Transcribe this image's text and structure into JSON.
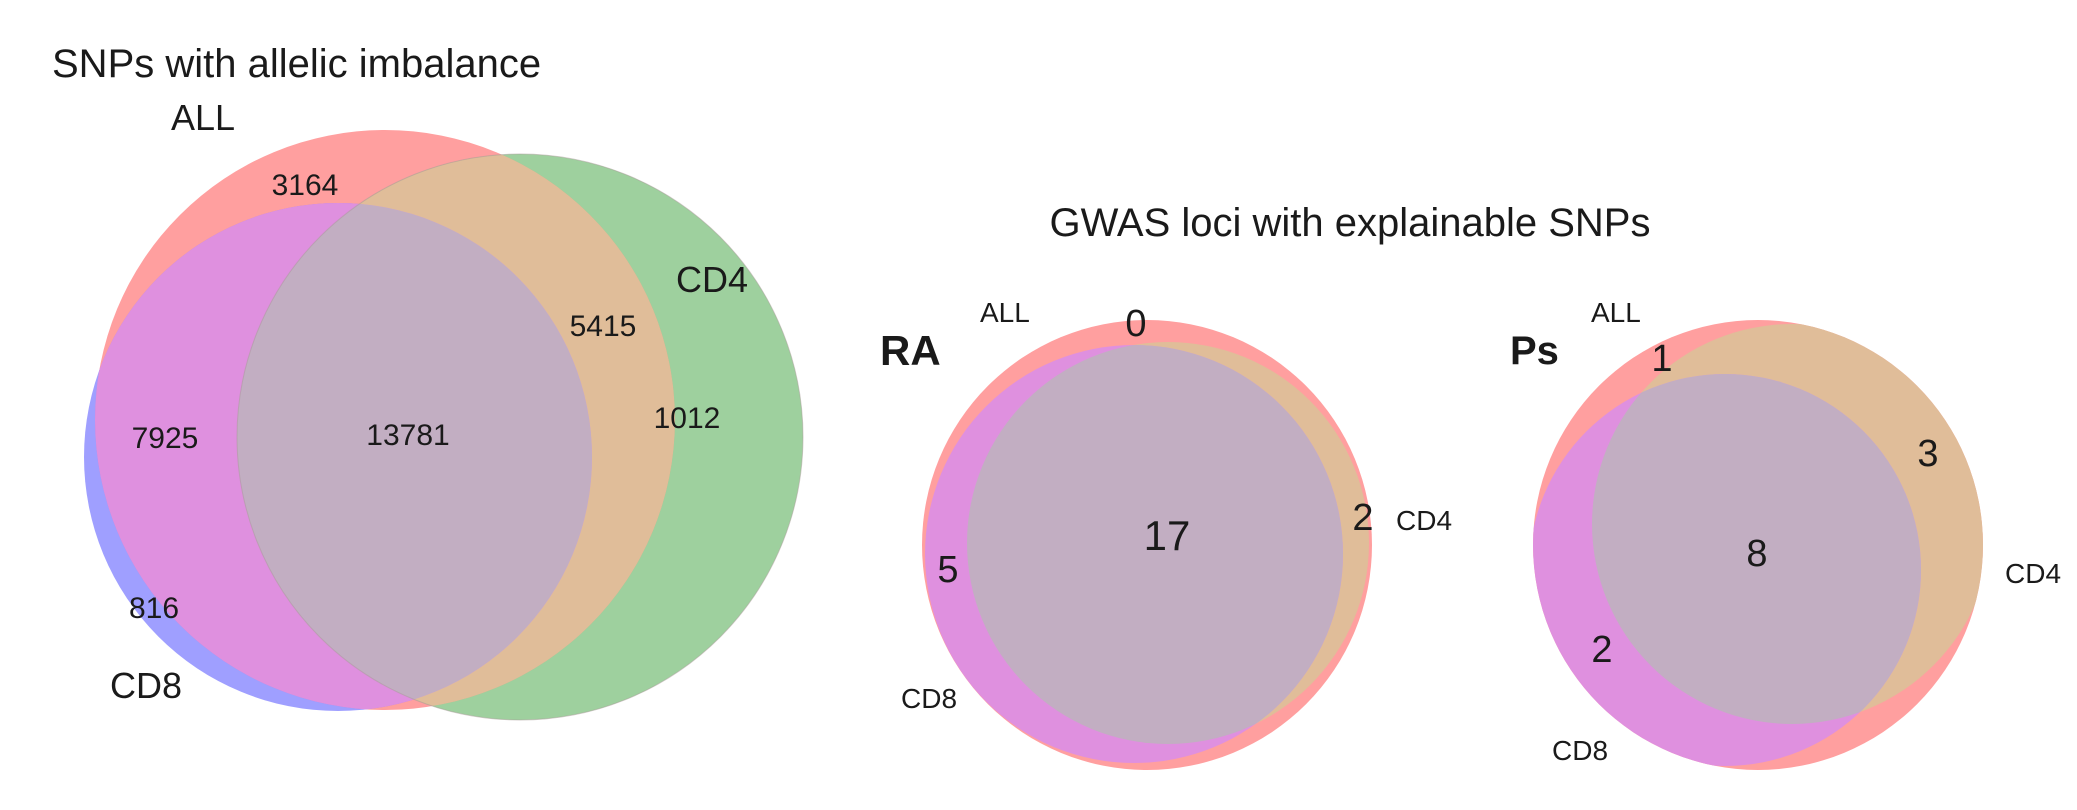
{
  "figure_a": {
    "title": "SNPs with allelic imbalance",
    "set_labels": {
      "all": "ALL",
      "cd4": "CD4",
      "cd8": "CD8"
    },
    "regions": {
      "all_only": "3164",
      "all_cd4": "5415",
      "cd4_only": "1012",
      "all_cd8": "7925",
      "all_cd4_cd8": "13781",
      "cd8_only": "816"
    }
  },
  "figure_b": {
    "title": "GWAS loci with explainable SNPs",
    "panels": [
      {
        "label": "RA",
        "set_labels": {
          "all": "ALL",
          "cd4": "CD4",
          "cd8": "CD8"
        },
        "regions": {
          "all_only": "0",
          "all_cd4": "2",
          "all_cd8": "5",
          "all_cd4_cd8": "17"
        }
      },
      {
        "label": "Ps",
        "set_labels": {
          "all": "ALL",
          "cd4": "CD4",
          "cd8": "CD8"
        },
        "regions": {
          "all_only": "1",
          "all_cd4": "3",
          "all_cd8": "2",
          "all_cd4_cd8": "8"
        }
      }
    ]
  },
  "colors": {
    "all": "#ff7f7f",
    "cd4": "#7ec07e",
    "cd8": "#7f7fff",
    "all_cd4": "#e0bd99",
    "all_cd8": "#df90df",
    "all_cd4_cd8": "#c2aec2"
  }
}
